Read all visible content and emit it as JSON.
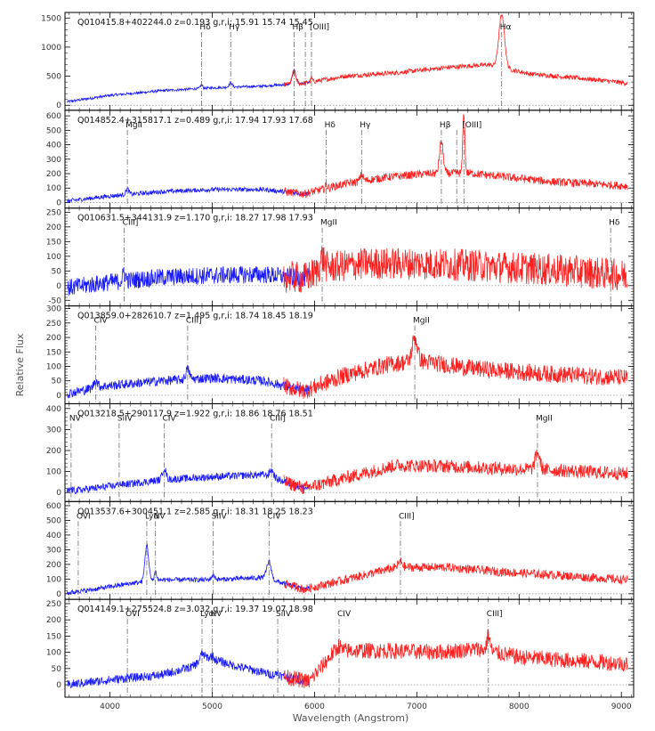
{
  "chart_data": {
    "type": "line",
    "xlabel": "Wavelength (Angstrom)",
    "ylabel": "Relative Flux",
    "xlim": [
      3560,
      9120
    ],
    "x_ticks": [
      4000,
      5000,
      6000,
      7000,
      8000,
      9000
    ],
    "colors": {
      "blue_arm": "#1a1aff",
      "red_arm": "#ff2020",
      "frame": "#000000",
      "line_marker": "#555555"
    },
    "panels": [
      {
        "name": "Q010415.8+402244.0",
        "z": "z=0.193",
        "mags": "g,r,i: 15.91  15.74  15.45",
        "ylim": [
          -40,
          1550
        ],
        "y_ticks": [
          0,
          500,
          1000,
          1500
        ],
        "continuum": [
          [
            3580,
            60
          ],
          [
            4000,
            170
          ],
          [
            4500,
            250
          ],
          [
            5000,
            300
          ],
          [
            5500,
            330
          ],
          [
            5900,
            380
          ],
          [
            6300,
            500
          ],
          [
            6800,
            560
          ],
          [
            7300,
            650
          ],
          [
            7700,
            700
          ],
          [
            8100,
            540
          ],
          [
            8500,
            480
          ],
          [
            8800,
            430
          ],
          [
            9050,
            380
          ]
        ],
        "noise": 40,
        "emission_lines": [
          {
            "label": "Hδ",
            "x": 4895,
            "amp": 60,
            "width": 12
          },
          {
            "label": "Hγ",
            "x": 5180,
            "amp": 80,
            "width": 15
          },
          {
            "label": "Hβ",
            "x": 5800,
            "amp": 220,
            "width": 18
          },
          {
            "label": "[OIII]",
            "x": 5970,
            "amp": 70,
            "width": 8
          },
          {
            "label": "Hα",
            "x": 7830,
            "amp": 900,
            "width": 28
          }
        ],
        "marker_only": [
          {
            "x": 5910
          }
        ]
      },
      {
        "name": "Q014852.4+315817.1",
        "z": "z=0.489",
        "mags": "g,r,i: 17.94  17.93  17.68",
        "ylim": [
          -20,
          620
        ],
        "y_ticks": [
          0,
          100,
          200,
          300,
          400,
          500,
          600
        ],
        "continuum": [
          [
            3580,
            10
          ],
          [
            4000,
            45
          ],
          [
            4500,
            75
          ],
          [
            5000,
            90
          ],
          [
            5500,
            90
          ],
          [
            5900,
            60
          ],
          [
            6300,
            130
          ],
          [
            6700,
            175
          ],
          [
            7100,
            200
          ],
          [
            7500,
            205
          ],
          [
            7900,
            175
          ],
          [
            8300,
            145
          ],
          [
            8700,
            130
          ],
          [
            9050,
            115
          ]
        ],
        "noise": 28,
        "emission_lines": [
          {
            "label": "MgII",
            "x": 4170,
            "amp": 40,
            "width": 15
          },
          {
            "label": "Hδ",
            "x": 6115,
            "amp": 20,
            "width": 12
          },
          {
            "label": "Hγ",
            "x": 6460,
            "amp": 45,
            "width": 15
          },
          {
            "label": "Hβ",
            "x": 7240,
            "amp": 220,
            "width": 18
          },
          {
            "label": "[OIII]",
            "x": 7460,
            "amp": 420,
            "width": 10
          }
        ],
        "marker_only": [
          {
            "x": 7390
          }
        ]
      },
      {
        "name": "Q010631.5+344131.9",
        "z": "z=1.170",
        "mags": "g,r,i: 18.27  17.98  17.93",
        "ylim": [
          -60,
          255
        ],
        "y_ticks": [
          -50,
          0,
          50,
          100,
          150,
          200,
          250
        ],
        "continuum": [
          [
            3580,
            -8
          ],
          [
            4000,
            12
          ],
          [
            4500,
            28
          ],
          [
            5000,
            35
          ],
          [
            5500,
            38
          ],
          [
            5900,
            25
          ],
          [
            6100,
            60
          ],
          [
            6500,
            75
          ],
          [
            7000,
            75
          ],
          [
            7500,
            70
          ],
          [
            8000,
            60
          ],
          [
            8500,
            50
          ],
          [
            9050,
            35
          ]
        ],
        "noise": 55,
        "emission_lines": [
          {
            "label": "CIII]",
            "x": 4140,
            "amp": 25,
            "width": 15
          },
          {
            "label": "MgII",
            "x": 6075,
            "amp": 40,
            "width": 20
          },
          {
            "label": "Hδ",
            "x": 8895,
            "amp": 10,
            "width": 10
          }
        ],
        "marker_only": []
      },
      {
        "name": "Q013859.0+282610.7",
        "z": "z=1.495",
        "mags": "g,r,i: 18.74  18.45  18.19",
        "ylim": [
          -20,
          300
        ],
        "y_ticks": [
          0,
          50,
          100,
          150,
          200,
          250,
          300
        ],
        "continuum": [
          [
            3580,
            5
          ],
          [
            3900,
            30
          ],
          [
            4500,
            50
          ],
          [
            5000,
            60
          ],
          [
            5500,
            50
          ],
          [
            5900,
            15
          ],
          [
            6300,
            70
          ],
          [
            6700,
            105
          ],
          [
            7000,
            120
          ],
          [
            7500,
            95
          ],
          [
            8000,
            80
          ],
          [
            8500,
            70
          ],
          [
            9050,
            60
          ]
        ],
        "noise": 30,
        "emission_lines": [
          {
            "label": "CIV",
            "x": 3860,
            "amp": 25,
            "width": 18
          },
          {
            "label": "CIII]",
            "x": 4760,
            "amp": 35,
            "width": 18
          },
          {
            "label": "MgII",
            "x": 6980,
            "amp": 80,
            "width": 25
          }
        ],
        "marker_only": []
      },
      {
        "name": "Q013218.5+290117.9",
        "z": "z=1.922",
        "mags": "g,r,i: 18.86  18.76  18.51",
        "ylim": [
          -30,
          410
        ],
        "y_ticks": [
          0,
          100,
          200,
          300,
          400
        ],
        "continuum": [
          [
            3580,
            5
          ],
          [
            4000,
            30
          ],
          [
            4500,
            60
          ],
          [
            5000,
            75
          ],
          [
            5500,
            85
          ],
          [
            5900,
            20
          ],
          [
            6300,
            70
          ],
          [
            6800,
            130
          ],
          [
            7300,
            125
          ],
          [
            7800,
            115
          ],
          [
            8200,
            110
          ],
          [
            8600,
            100
          ],
          [
            9050,
            90
          ]
        ],
        "noise": 32,
        "emission_lines": [
          {
            "label": "NV",
            "x": 3620,
            "amp": 10,
            "width": 10
          },
          {
            "label": "SiIV",
            "x": 4090,
            "amp": 10,
            "width": 12
          },
          {
            "label": "CIV",
            "x": 4530,
            "amp": 55,
            "width": 18
          },
          {
            "label": "CIII]",
            "x": 5580,
            "amp": 35,
            "width": 20
          },
          {
            "label": "MgII",
            "x": 8180,
            "amp": 80,
            "width": 22
          }
        ],
        "marker_only": []
      },
      {
        "name": "Q013537.6+300451.1",
        "z": "z=2.585",
        "mags": "g,r,i: 18.31  18.25  18.23",
        "ylim": [
          -20,
          610
        ],
        "y_ticks": [
          0,
          100,
          200,
          300,
          400,
          500,
          600
        ],
        "continuum": [
          [
            3580,
            5
          ],
          [
            3800,
            25
          ],
          [
            4200,
            70
          ],
          [
            4500,
            95
          ],
          [
            5000,
            95
          ],
          [
            5500,
            110
          ],
          [
            5900,
            30
          ],
          [
            6300,
            95
          ],
          [
            6800,
            180
          ],
          [
            7300,
            180
          ],
          [
            7800,
            150
          ],
          [
            8300,
            130
          ],
          [
            8700,
            110
          ],
          [
            9050,
            95
          ]
        ],
        "noise": 30,
        "emission_lines": [
          {
            "label": "OVI",
            "x": 3690,
            "amp": 10,
            "width": 10
          },
          {
            "label": "Lyα",
            "x": 4360,
            "amp": 250,
            "width": 18
          },
          {
            "label": "NV",
            "x": 4445,
            "amp": 60,
            "width": 12
          },
          {
            "label": "SiIV",
            "x": 5010,
            "amp": 30,
            "width": 18
          },
          {
            "label": "CIV",
            "x": 5555,
            "amp": 120,
            "width": 22
          },
          {
            "label": "CIII]",
            "x": 6840,
            "amp": 40,
            "width": 20
          }
        ],
        "marker_only": []
      },
      {
        "name": "Q014149.1+275524.8",
        "z": "z=3.032",
        "mags": "g,r,i: 19.37  19.07  18.98",
        "ylim": [
          -30,
          255
        ],
        "y_ticks": [
          0,
          50,
          100,
          150,
          200,
          250
        ],
        "continuum": [
          [
            3580,
            0
          ],
          [
            4000,
            15
          ],
          [
            4500,
            30
          ],
          [
            4800,
            55
          ],
          [
            4950,
            85
          ],
          [
            5200,
            60
          ],
          [
            5600,
            30
          ],
          [
            5950,
            10
          ],
          [
            6200,
            105
          ],
          [
            6700,
            105
          ],
          [
            7200,
            100
          ],
          [
            7600,
            110
          ],
          [
            8000,
            85
          ],
          [
            8500,
            75
          ],
          [
            9050,
            65
          ]
        ],
        "noise": 25,
        "emission_lines": [
          {
            "label": "OVI",
            "x": 4170,
            "amp": 5,
            "width": 10
          },
          {
            "label": "Lyα",
            "x": 4900,
            "amp": 20,
            "width": 20
          },
          {
            "label": "NV",
            "x": 5000,
            "amp": 10,
            "width": 12
          },
          {
            "label": "SiIV",
            "x": 5640,
            "amp": 10,
            "width": 15
          },
          {
            "label": "CIV",
            "x": 6240,
            "amp": 15,
            "width": 15
          },
          {
            "label": "CIII]",
            "x": 7700,
            "amp": 50,
            "width": 15
          }
        ],
        "marker_only": []
      }
    ]
  }
}
